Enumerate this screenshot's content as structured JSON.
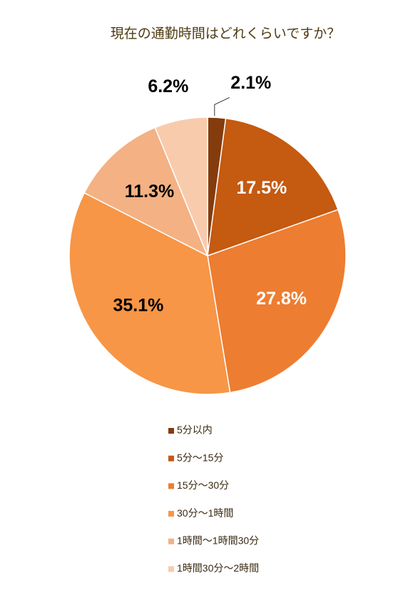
{
  "chart_data": {
    "type": "pie",
    "title": "現在の通勤時間はどれくらいですか？",
    "categories": [
      "5分以内",
      "5分～15分",
      "15分～30分",
      "30分～1時間",
      "1時間～1時間30分",
      "1時間30分～2時間"
    ],
    "values": [
      2.1,
      17.5,
      27.8,
      35.1,
      11.3,
      6.2
    ],
    "value_labels": [
      "2.1%",
      "17.5%",
      "27.8%",
      "35.1%",
      "11.3%",
      "6.2%"
    ],
    "colors": [
      "#843c0c",
      "#c55a11",
      "#ed7d31",
      "#f79646",
      "#f4b183",
      "#f8cbad"
    ]
  }
}
